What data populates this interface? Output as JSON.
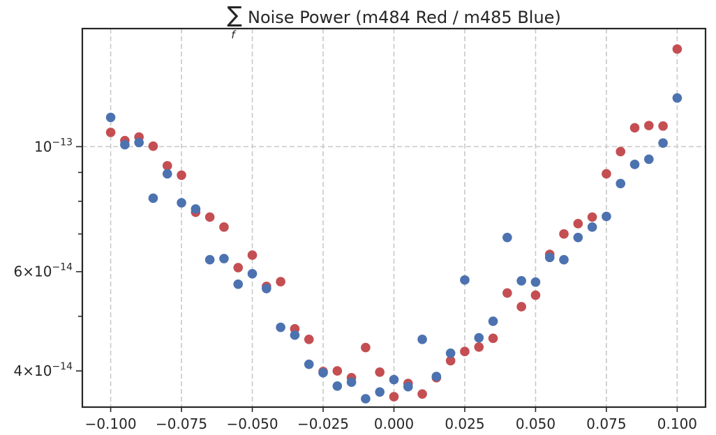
{
  "chart_data": {
    "type": "scatter",
    "title": "Noise Power (m484 Red / m485 Blue)",
    "title_symbol": "∑",
    "title_subscript": "f",
    "xlabel": "",
    "ylabel": "",
    "xlim": [
      -0.11,
      0.11
    ],
    "ylim": [
      3.45e-14,
      1.62e-13
    ],
    "yscale": "log",
    "grid": true,
    "x_ticks": [
      -0.1,
      -0.075,
      -0.05,
      -0.025,
      0.0,
      0.025,
      0.05,
      0.075,
      0.1
    ],
    "x_tick_labels": [
      "−0.100",
      "−0.075",
      "−0.050",
      "−0.025",
      "0.000",
      "0.025",
      "0.050",
      "0.075",
      "0.100"
    ],
    "y_major_ticks": [
      {
        "value": 1e-13,
        "base": "10",
        "exp": "−13"
      },
      {
        "value": 6e-14,
        "base": "6×10",
        "exp": "−14"
      },
      {
        "value": 4e-14,
        "base": "4×10",
        "exp": "−14"
      }
    ],
    "y_minor_ticks": [
      9e-14,
      8e-14,
      7e-14,
      5e-14
    ],
    "series": [
      {
        "color": "#c44e52",
        "points": [
          [
            -0.1,
            1.06e-13
          ],
          [
            -0.095,
            1.025e-13
          ],
          [
            -0.09,
            1.04e-13
          ],
          [
            -0.085,
            1.002e-13
          ],
          [
            -0.08,
            9.25e-14
          ],
          [
            -0.075,
            8.9e-14
          ],
          [
            -0.07,
            7.65e-14
          ],
          [
            -0.065,
            7.5e-14
          ],
          [
            -0.06,
            7.2e-14
          ],
          [
            -0.055,
            6.1e-14
          ],
          [
            -0.05,
            6.42e-14
          ],
          [
            -0.045,
            5.65e-14
          ],
          [
            -0.04,
            5.76e-14
          ],
          [
            -0.035,
            4.75e-14
          ],
          [
            -0.03,
            4.55e-14
          ],
          [
            -0.025,
            3.99e-14
          ],
          [
            -0.02,
            4e-14
          ],
          [
            -0.015,
            3.89e-14
          ],
          [
            -0.01,
            4.4e-14
          ],
          [
            -0.005,
            3.98e-14
          ],
          [
            0.0,
            3.6e-14
          ],
          [
            0.005,
            3.8e-14
          ],
          [
            0.01,
            3.64e-14
          ],
          [
            0.015,
            3.89e-14
          ],
          [
            0.02,
            4.17e-14
          ],
          [
            0.025,
            4.33e-14
          ],
          [
            0.03,
            4.41e-14
          ],
          [
            0.035,
            4.57e-14
          ],
          [
            0.04,
            5.5e-14
          ],
          [
            0.045,
            5.2e-14
          ],
          [
            0.05,
            5.45e-14
          ],
          [
            0.055,
            6.44e-14
          ],
          [
            0.06,
            7e-14
          ],
          [
            0.065,
            7.3e-14
          ],
          [
            0.07,
            7.5e-14
          ],
          [
            0.075,
            8.95e-14
          ],
          [
            0.08,
            9.8e-14
          ],
          [
            0.085,
            1.08e-13
          ],
          [
            0.09,
            1.09e-13
          ],
          [
            0.095,
            1.088e-13
          ],
          [
            0.1,
            1.49e-13
          ]
        ]
      },
      {
        "color": "#4c72b0",
        "points": [
          [
            -0.1,
            1.127e-13
          ],
          [
            -0.095,
            1.008e-13
          ],
          [
            -0.09,
            1.017e-13
          ],
          [
            -0.085,
            8.1e-14
          ],
          [
            -0.08,
            8.95e-14
          ],
          [
            -0.075,
            7.95e-14
          ],
          [
            -0.07,
            7.75e-14
          ],
          [
            -0.065,
            6.3e-14
          ],
          [
            -0.06,
            6.33e-14
          ],
          [
            -0.055,
            5.7e-14
          ],
          [
            -0.05,
            5.95e-14
          ],
          [
            -0.045,
            5.6e-14
          ],
          [
            -0.04,
            4.78e-14
          ],
          [
            -0.035,
            4.63e-14
          ],
          [
            -0.03,
            4.11e-14
          ],
          [
            -0.025,
            3.97e-14
          ],
          [
            -0.02,
            3.76e-14
          ],
          [
            -0.015,
            3.82e-14
          ],
          [
            -0.01,
            3.57e-14
          ],
          [
            -0.005,
            3.67e-14
          ],
          [
            0.0,
            3.86e-14
          ],
          [
            0.005,
            3.75e-14
          ],
          [
            0.01,
            4.55e-14
          ],
          [
            0.015,
            3.91e-14
          ],
          [
            0.02,
            4.3e-14
          ],
          [
            0.025,
            5.8e-14
          ],
          [
            0.03,
            4.58e-14
          ],
          [
            0.035,
            4.9e-14
          ],
          [
            0.04,
            6.9e-14
          ],
          [
            0.045,
            5.78e-14
          ],
          [
            0.05,
            5.75e-14
          ],
          [
            0.055,
            6.36e-14
          ],
          [
            0.06,
            6.3e-14
          ],
          [
            0.065,
            6.9e-14
          ],
          [
            0.07,
            7.2e-14
          ],
          [
            0.075,
            7.52e-14
          ],
          [
            0.08,
            8.6e-14
          ],
          [
            0.085,
            9.3e-14
          ],
          [
            0.09,
            9.5e-14
          ],
          [
            0.095,
            1.015e-13
          ],
          [
            0.1,
            1.22e-13
          ]
        ]
      }
    ]
  }
}
